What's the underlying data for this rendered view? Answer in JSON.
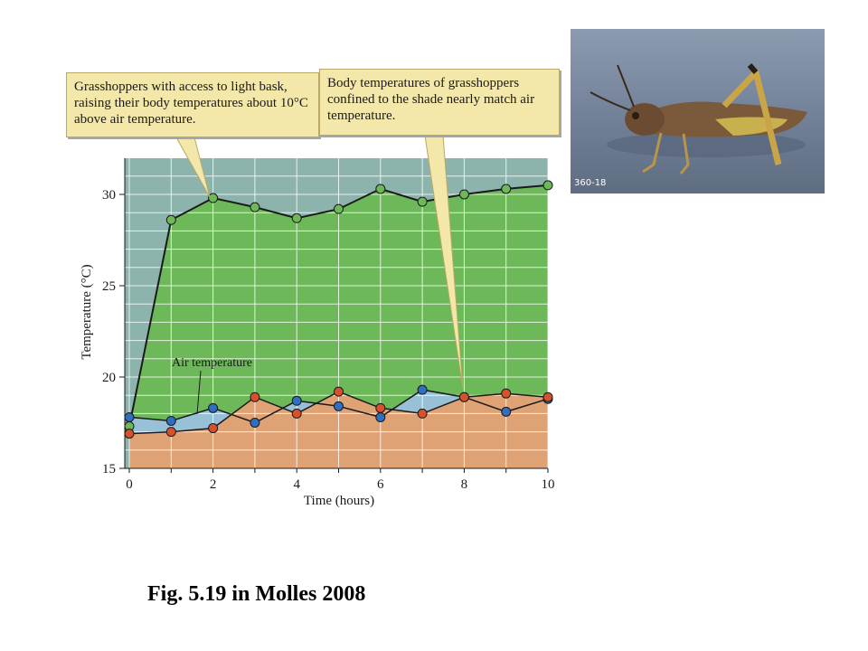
{
  "caption": "Fig. 5.19 in Molles 2008",
  "photo": {
    "label": "360-18"
  },
  "annotations": {
    "basking": "Grasshoppers with access to light bask, raising their body temperatures about 10°C above air temperature.",
    "shade": "Body temperatures of grasshoppers confined to the shade nearly match air temperature.",
    "air": "Air temperature"
  },
  "colors": {
    "basking_fill": "#6db858",
    "air_fill": "#9cc2e6",
    "shade_fill": "#dfa274",
    "background": "#8db3ad",
    "blue_point": "#2f6ec0",
    "red_point": "#d9502c",
    "callout_fill": "#f3e7a9"
  },
  "chart_data": {
    "type": "line",
    "xlabel": "Time (hours)",
    "ylabel": "Temperature (°C)",
    "xlim": [
      0,
      10
    ],
    "ylim": [
      15,
      32
    ],
    "x_ticks": [
      "0",
      "2",
      "4",
      "6",
      "8",
      "10"
    ],
    "y_ticks": [
      "15",
      "20",
      "25",
      "30"
    ],
    "grid": true,
    "series": [
      {
        "x": [
          0,
          1,
          2,
          3,
          4,
          5,
          6,
          7,
          8,
          9,
          10
        ],
        "values": [
          17.3,
          28.6,
          29.8,
          29.3,
          28.7,
          29.2,
          30.3,
          29.6,
          30.0,
          30.3,
          30.5
        ]
      },
      {
        "x": [
          0,
          1,
          2,
          3,
          4,
          5,
          6,
          7,
          8,
          9,
          10
        ],
        "values": [
          17.8,
          17.6,
          18.3,
          17.5,
          18.7,
          18.4,
          17.8,
          19.3,
          18.9,
          18.1,
          18.8
        ]
      },
      {
        "x": [
          0,
          1,
          2,
          3,
          4,
          5,
          6,
          7,
          8,
          9,
          10
        ],
        "values": [
          16.9,
          17.0,
          17.2,
          18.9,
          18.0,
          19.2,
          18.3,
          18.0,
          18.9,
          19.1,
          18.9
        ]
      }
    ]
  }
}
